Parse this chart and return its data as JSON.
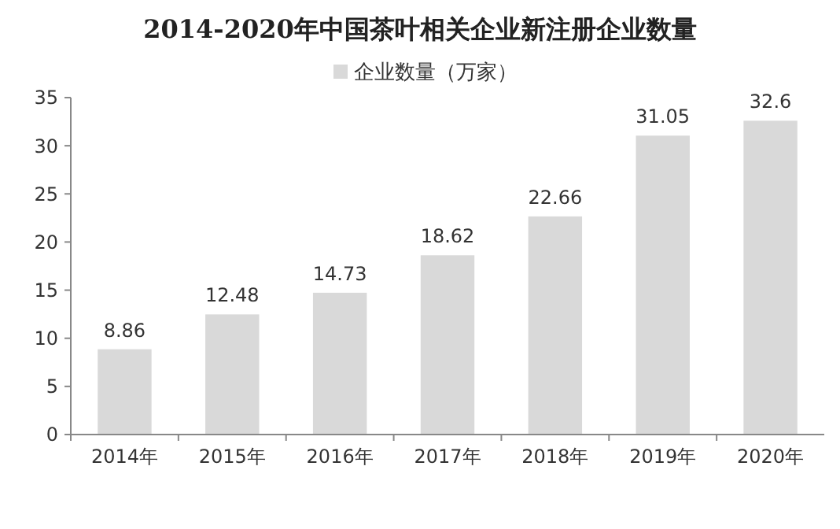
{
  "chart_data": {
    "type": "bar",
    "title": "2014-2020年中国茶叶相关企业新注册企业数量",
    "categories": [
      "2014年",
      "2015年",
      "2016年",
      "2017年",
      "2018年",
      "2019年",
      "2020年"
    ],
    "series": [
      {
        "name": "企业数量（万家）",
        "color": "#d9d9d9",
        "values": [
          8.86,
          12.48,
          14.73,
          18.62,
          22.66,
          31.05,
          32.6
        ]
      }
    ],
    "ylim": [
      0,
      35
    ],
    "yticks": [
      0,
      5,
      10,
      15,
      20,
      25,
      30,
      35
    ],
    "data_labels": true,
    "legend": "top",
    "grid": false
  }
}
